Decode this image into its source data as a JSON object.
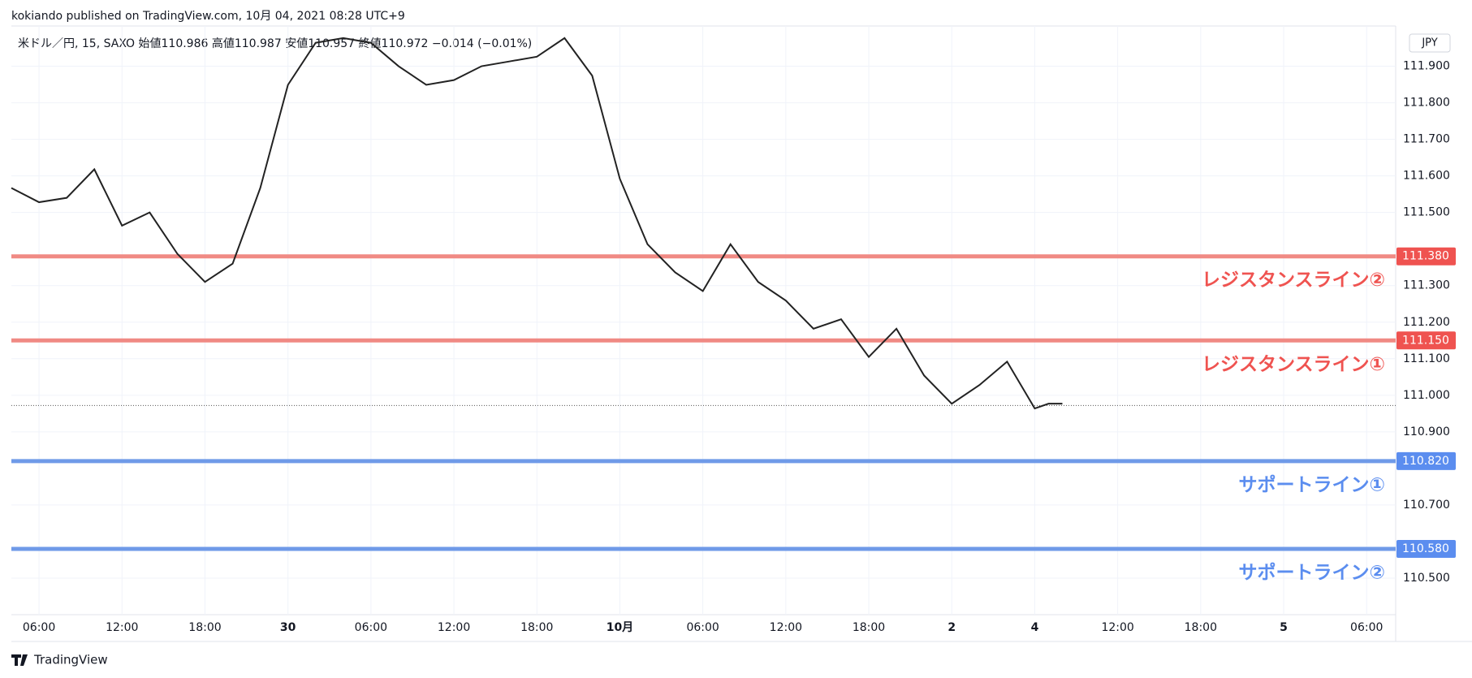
{
  "header": {
    "publisher": "kokiando published on TradingView.com, 10月 04, 2021 08:28 UTC+9",
    "symbol_line": "米ドル／円, 15, SAXO  始値110.986  高値110.987  安値110.957  終値110.972  −0.014 (−0.01%)",
    "currency": "JPY"
  },
  "footer": {
    "brand": "TradingView"
  },
  "chart_data": {
    "type": "line",
    "x": [
      4,
      6,
      8,
      10,
      12,
      14,
      16,
      18,
      20,
      22,
      24,
      26,
      28,
      30,
      32,
      34,
      36,
      38,
      40,
      42,
      44,
      46,
      48,
      50,
      52,
      54,
      56,
      58,
      60,
      62,
      64,
      66,
      68,
      70,
      72,
      74,
      76,
      78,
      79,
      80
    ],
    "series": [
      {
        "name": "米ドル／円",
        "color": "#222222",
        "values": [
          111.567,
          111.528,
          111.54,
          111.618,
          111.464,
          111.5,
          111.387,
          111.31,
          111.36,
          111.567,
          111.849,
          111.964,
          111.977,
          111.964,
          111.9,
          111.849,
          111.862,
          111.9,
          111.913,
          111.926,
          111.977,
          111.874,
          111.592,
          111.413,
          111.336,
          111.285,
          111.413,
          111.31,
          111.259,
          111.182,
          111.208,
          111.105,
          111.182,
          111.054,
          110.977,
          111.028,
          111.092,
          110.964,
          110.977,
          110.977
        ]
      }
    ],
    "xlim": [
      4,
      104.1
    ],
    "xticks": [
      {
        "value": 6,
        "label": "06:00"
      },
      {
        "value": 12,
        "label": "12:00"
      },
      {
        "value": 18,
        "label": "18:00"
      },
      {
        "value": 24,
        "label": "30"
      },
      {
        "value": 30,
        "label": "06:00"
      },
      {
        "value": 36,
        "label": "12:00"
      },
      {
        "value": 42,
        "label": "18:00"
      },
      {
        "value": 48,
        "label": "10月"
      },
      {
        "value": 54,
        "label": "06:00"
      },
      {
        "value": 60,
        "label": "12:00"
      },
      {
        "value": 66,
        "label": "18:00"
      },
      {
        "value": 72,
        "label": "2"
      },
      {
        "value": 78,
        "label": "4"
      },
      {
        "value": 84,
        "label": "12:00"
      },
      {
        "value": 90,
        "label": "18:00"
      },
      {
        "value": 96,
        "label": "5"
      },
      {
        "value": 102,
        "label": "06:00"
      }
    ],
    "ylim": [
      110.4,
      112.01
    ],
    "yticks": [
      {
        "value": 110.5,
        "label": "110.500"
      },
      {
        "value": 110.7,
        "label": "110.700"
      },
      {
        "value": 110.9,
        "label": "110.900"
      },
      {
        "value": 111.0,
        "label": "111.000"
      },
      {
        "value": 111.1,
        "label": "111.100"
      },
      {
        "value": 111.2,
        "label": "111.200"
      },
      {
        "value": 111.3,
        "label": "111.300"
      },
      {
        "value": 111.5,
        "label": "111.500"
      },
      {
        "value": 111.6,
        "label": "111.600"
      },
      {
        "value": 111.7,
        "label": "111.700"
      },
      {
        "value": 111.8,
        "label": "111.800"
      },
      {
        "value": 111.9,
        "label": "111.900"
      }
    ],
    "grid": true,
    "last_price": 110.972,
    "lines": [
      {
        "value": 111.38,
        "label": "111.380",
        "name": "レジスタンスライン②",
        "color": "#f08a84",
        "text_color": "#ef5350"
      },
      {
        "value": 111.15,
        "label": "111.150",
        "name": "レジスタンスライン①",
        "color": "#f08a84",
        "text_color": "#ef5350"
      },
      {
        "value": 110.82,
        "label": "110.820",
        "name": "サポートライン①",
        "color": "#6f9ae8",
        "text_color": "#5b8def"
      },
      {
        "value": 110.58,
        "label": "110.580",
        "name": "サポートライン②",
        "color": "#6f9ae8",
        "text_color": "#5b8def"
      }
    ]
  }
}
